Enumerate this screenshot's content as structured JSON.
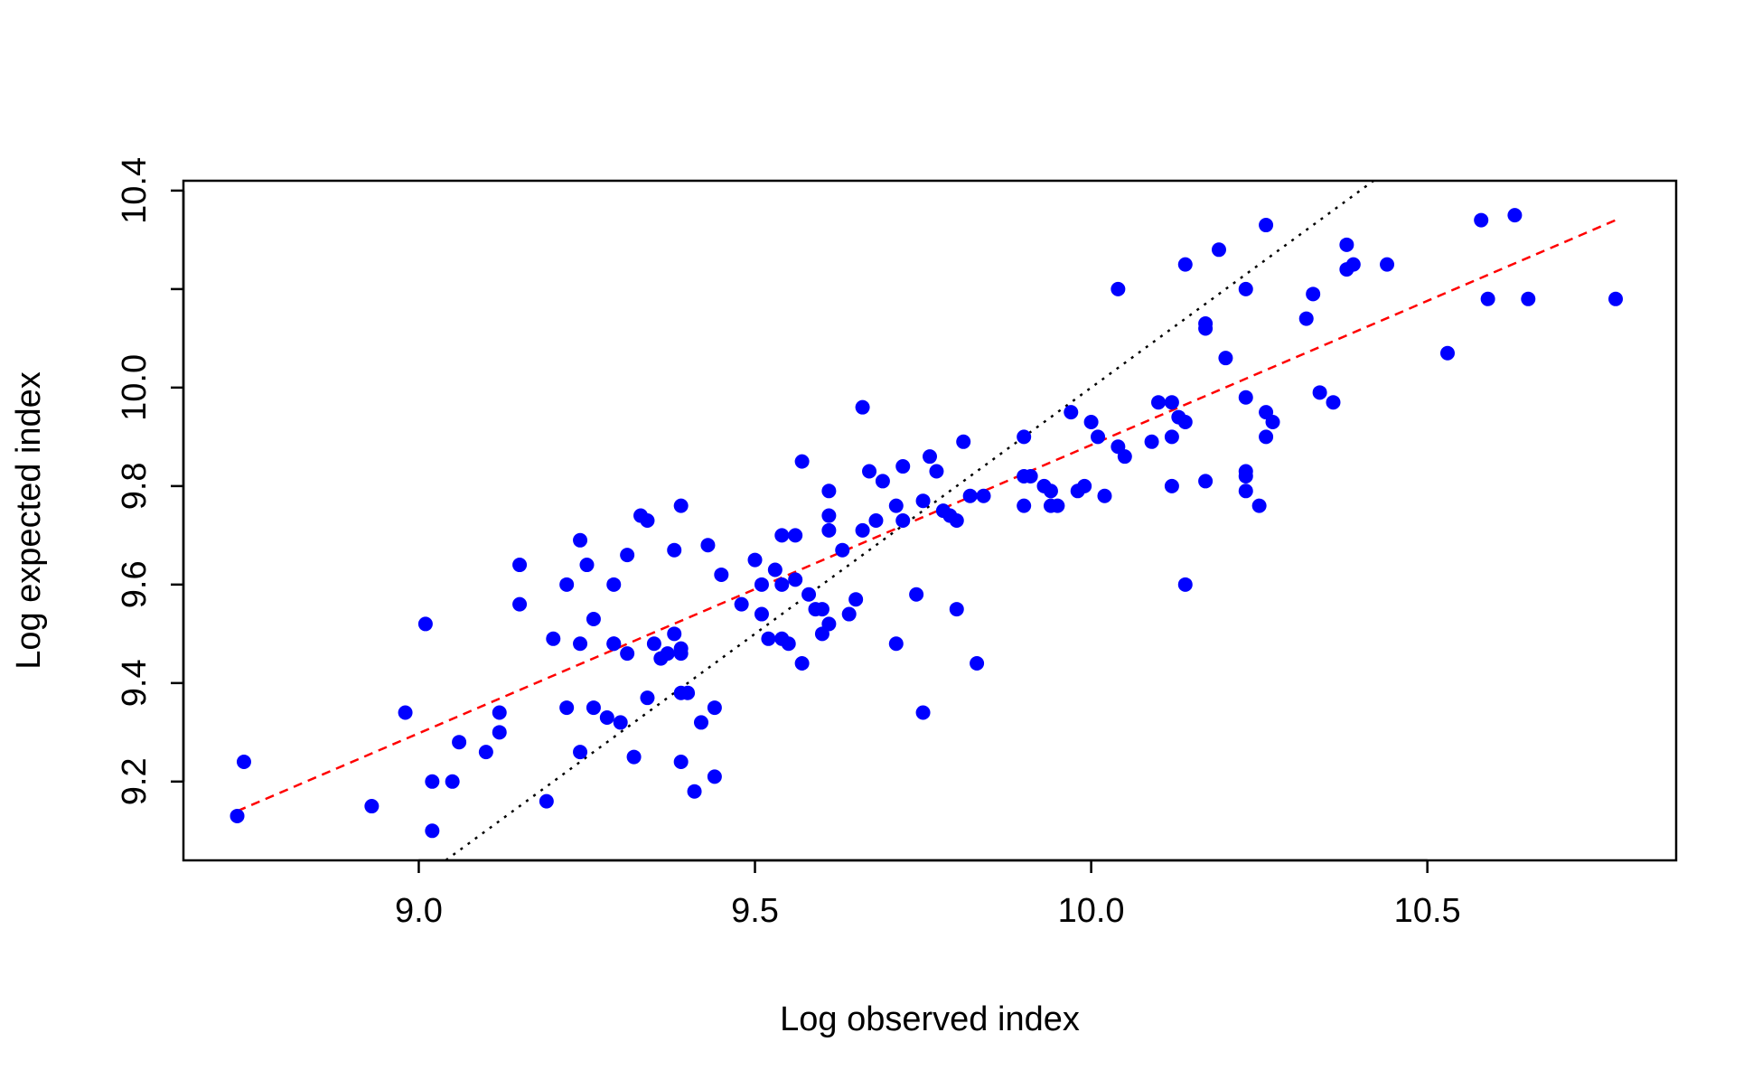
{
  "chart_data": {
    "type": "scatter",
    "title": "",
    "xlabel": "Log observed index",
    "ylabel": "Log expected index",
    "xlim": [
      8.65,
      10.87
    ],
    "ylim": [
      9.04,
      10.42
    ],
    "xticks": [
      "9.0",
      "9.5",
      "10.0",
      "10.5"
    ],
    "yticks": [
      "9.2",
      "9.4",
      "9.6",
      "9.8",
      "10.0",
      "10.2",
      "10.4"
    ],
    "ytick_values": [
      9.2,
      9.4,
      9.6,
      9.8,
      10.0,
      10.2,
      10.4
    ],
    "ytick_labels": [
      "9.2",
      "9.4",
      "9.6",
      "9.8",
      "10.0",
      "",
      "10.4"
    ],
    "grid": false,
    "legend": false,
    "colors": {
      "points": "#0000ff",
      "fit_line": "#ff0000",
      "reference_line": "#000000"
    },
    "reference_line": {
      "style": "dotted",
      "slope": 1,
      "intercept": 0
    },
    "fit_line": {
      "style": "dashed",
      "x": [
        8.73,
        10.78
      ],
      "y": [
        9.14,
        10.34
      ]
    },
    "series": [
      {
        "points": [
          [
            8.73,
            9.13
          ],
          [
            8.74,
            9.24
          ],
          [
            8.93,
            9.15
          ],
          [
            8.98,
            9.34
          ],
          [
            9.01,
            9.52
          ],
          [
            9.02,
            9.2
          ],
          [
            9.02,
            9.1
          ],
          [
            9.05,
            9.2
          ],
          [
            9.06,
            9.28
          ],
          [
            9.1,
            9.26
          ],
          [
            9.12,
            9.3
          ],
          [
            9.12,
            9.34
          ],
          [
            9.15,
            9.64
          ],
          [
            9.15,
            9.56
          ],
          [
            9.19,
            9.16
          ],
          [
            9.2,
            9.49
          ],
          [
            9.22,
            9.6
          ],
          [
            9.22,
            9.35
          ],
          [
            9.24,
            9.69
          ],
          [
            9.24,
            9.48
          ],
          [
            9.24,
            9.26
          ],
          [
            9.25,
            9.64
          ],
          [
            9.26,
            9.53
          ],
          [
            9.26,
            9.35
          ],
          [
            9.28,
            9.33
          ],
          [
            9.29,
            9.6
          ],
          [
            9.29,
            9.48
          ],
          [
            9.29,
            9.48
          ],
          [
            9.3,
            9.32
          ],
          [
            9.31,
            9.46
          ],
          [
            9.31,
            9.66
          ],
          [
            9.32,
            9.25
          ],
          [
            9.33,
            9.74
          ],
          [
            9.34,
            9.73
          ],
          [
            9.34,
            9.37
          ],
          [
            9.35,
            9.48
          ],
          [
            9.36,
            9.45
          ],
          [
            9.37,
            9.46
          ],
          [
            9.38,
            9.67
          ],
          [
            9.38,
            9.5
          ],
          [
            9.39,
            9.76
          ],
          [
            9.39,
            9.47
          ],
          [
            9.39,
            9.46
          ],
          [
            9.39,
            9.38
          ],
          [
            9.39,
            9.24
          ],
          [
            9.4,
            9.38
          ],
          [
            9.41,
            9.18
          ],
          [
            9.42,
            9.32
          ],
          [
            9.43,
            9.68
          ],
          [
            9.44,
            9.35
          ],
          [
            9.44,
            9.21
          ],
          [
            9.45,
            9.62
          ],
          [
            9.48,
            9.56
          ],
          [
            9.5,
            9.65
          ],
          [
            9.51,
            9.6
          ],
          [
            9.51,
            9.54
          ],
          [
            9.52,
            9.49
          ],
          [
            9.53,
            9.63
          ],
          [
            9.54,
            9.7
          ],
          [
            9.54,
            9.6
          ],
          [
            9.54,
            9.49
          ],
          [
            9.55,
            9.48
          ],
          [
            9.56,
            9.7
          ],
          [
            9.56,
            9.61
          ],
          [
            9.57,
            9.44
          ],
          [
            9.57,
            9.85
          ],
          [
            9.58,
            9.58
          ],
          [
            9.59,
            9.55
          ],
          [
            9.6,
            9.55
          ],
          [
            9.6,
            9.5
          ],
          [
            9.61,
            9.52
          ],
          [
            9.61,
            9.71
          ],
          [
            9.61,
            9.74
          ],
          [
            9.61,
            9.79
          ],
          [
            9.63,
            9.67
          ],
          [
            9.64,
            9.54
          ],
          [
            9.65,
            9.57
          ],
          [
            9.66,
            9.71
          ],
          [
            9.66,
            9.96
          ],
          [
            9.67,
            9.83
          ],
          [
            9.68,
            9.73
          ],
          [
            9.69,
            9.81
          ],
          [
            9.71,
            9.76
          ],
          [
            9.71,
            9.48
          ],
          [
            9.72,
            9.73
          ],
          [
            9.72,
            9.84
          ],
          [
            9.74,
            9.58
          ],
          [
            9.75,
            9.77
          ],
          [
            9.75,
            9.34
          ],
          [
            9.76,
            9.86
          ],
          [
            9.77,
            9.83
          ],
          [
            9.78,
            9.75
          ],
          [
            9.79,
            9.74
          ],
          [
            9.8,
            9.73
          ],
          [
            9.8,
            9.55
          ],
          [
            9.81,
            9.89
          ],
          [
            9.82,
            9.78
          ],
          [
            9.83,
            9.44
          ],
          [
            9.84,
            9.78
          ],
          [
            9.9,
            9.9
          ],
          [
            9.9,
            9.82
          ],
          [
            9.9,
            9.76
          ],
          [
            9.91,
            9.82
          ],
          [
            9.93,
            9.8
          ],
          [
            9.94,
            9.79
          ],
          [
            9.94,
            9.76
          ],
          [
            9.95,
            9.76
          ],
          [
            9.97,
            9.95
          ],
          [
            9.98,
            9.79
          ],
          [
            9.99,
            9.8
          ],
          [
            10.0,
            9.93
          ],
          [
            10.01,
            9.9
          ],
          [
            10.02,
            9.78
          ],
          [
            10.04,
            10.2
          ],
          [
            10.04,
            9.88
          ],
          [
            10.05,
            9.86
          ],
          [
            10.09,
            9.89
          ],
          [
            10.1,
            9.97
          ],
          [
            10.12,
            9.97
          ],
          [
            10.12,
            9.9
          ],
          [
            10.12,
            9.8
          ],
          [
            10.13,
            9.94
          ],
          [
            10.14,
            9.93
          ],
          [
            10.14,
            9.6
          ],
          [
            10.14,
            10.25
          ],
          [
            10.17,
            10.13
          ],
          [
            10.17,
            10.12
          ],
          [
            10.17,
            9.81
          ],
          [
            10.19,
            10.28
          ],
          [
            10.2,
            10.06
          ],
          [
            10.23,
            10.2
          ],
          [
            10.23,
            9.98
          ],
          [
            10.23,
            9.83
          ],
          [
            10.23,
            9.82
          ],
          [
            10.23,
            9.79
          ],
          [
            10.25,
            9.76
          ],
          [
            10.26,
            10.33
          ],
          [
            10.26,
            9.95
          ],
          [
            10.26,
            9.9
          ],
          [
            10.27,
            9.93
          ],
          [
            10.32,
            10.14
          ],
          [
            10.33,
            10.19
          ],
          [
            10.34,
            9.99
          ],
          [
            10.36,
            9.97
          ],
          [
            10.38,
            10.29
          ],
          [
            10.38,
            10.24
          ],
          [
            10.39,
            10.25
          ],
          [
            10.44,
            10.25
          ],
          [
            10.53,
            10.07
          ],
          [
            10.58,
            10.34
          ],
          [
            10.59,
            10.18
          ],
          [
            10.63,
            10.35
          ],
          [
            10.65,
            10.18
          ],
          [
            10.78,
            10.18
          ]
        ]
      }
    ]
  }
}
